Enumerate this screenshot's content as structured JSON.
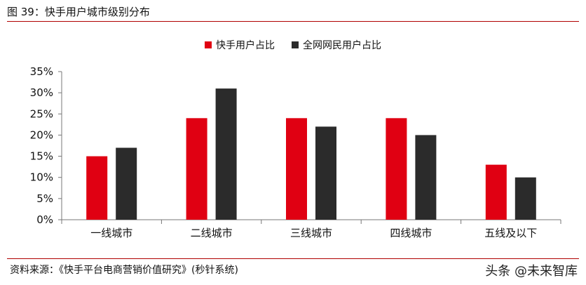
{
  "header": {
    "title": "图 39：快手用户城市级别分布"
  },
  "footer": {
    "source": "资料来源：《快手平台电商营销价值研究》(秒针系统)",
    "watermark": "头条 @未来智库"
  },
  "colors": {
    "series1": "#e00012",
    "series2": "#2b2b2b",
    "rule": "#b00000"
  },
  "chart_data": {
    "type": "bar",
    "categories": [
      "一线城市",
      "二线城市",
      "三线城市",
      "四线城市",
      "五线及以下"
    ],
    "series": [
      {
        "name": "快手用户占比",
        "values": [
          15,
          24,
          24,
          24,
          13
        ]
      },
      {
        "name": "全网网民用户占比",
        "values": [
          17,
          31,
          22,
          20,
          10
        ]
      }
    ],
    "y_ticks": [
      "0%",
      "5%",
      "10%",
      "15%",
      "20%",
      "25%",
      "30%",
      "35%"
    ],
    "ylim": [
      0,
      35
    ],
    "grid": false,
    "legend_position": "top-center"
  }
}
